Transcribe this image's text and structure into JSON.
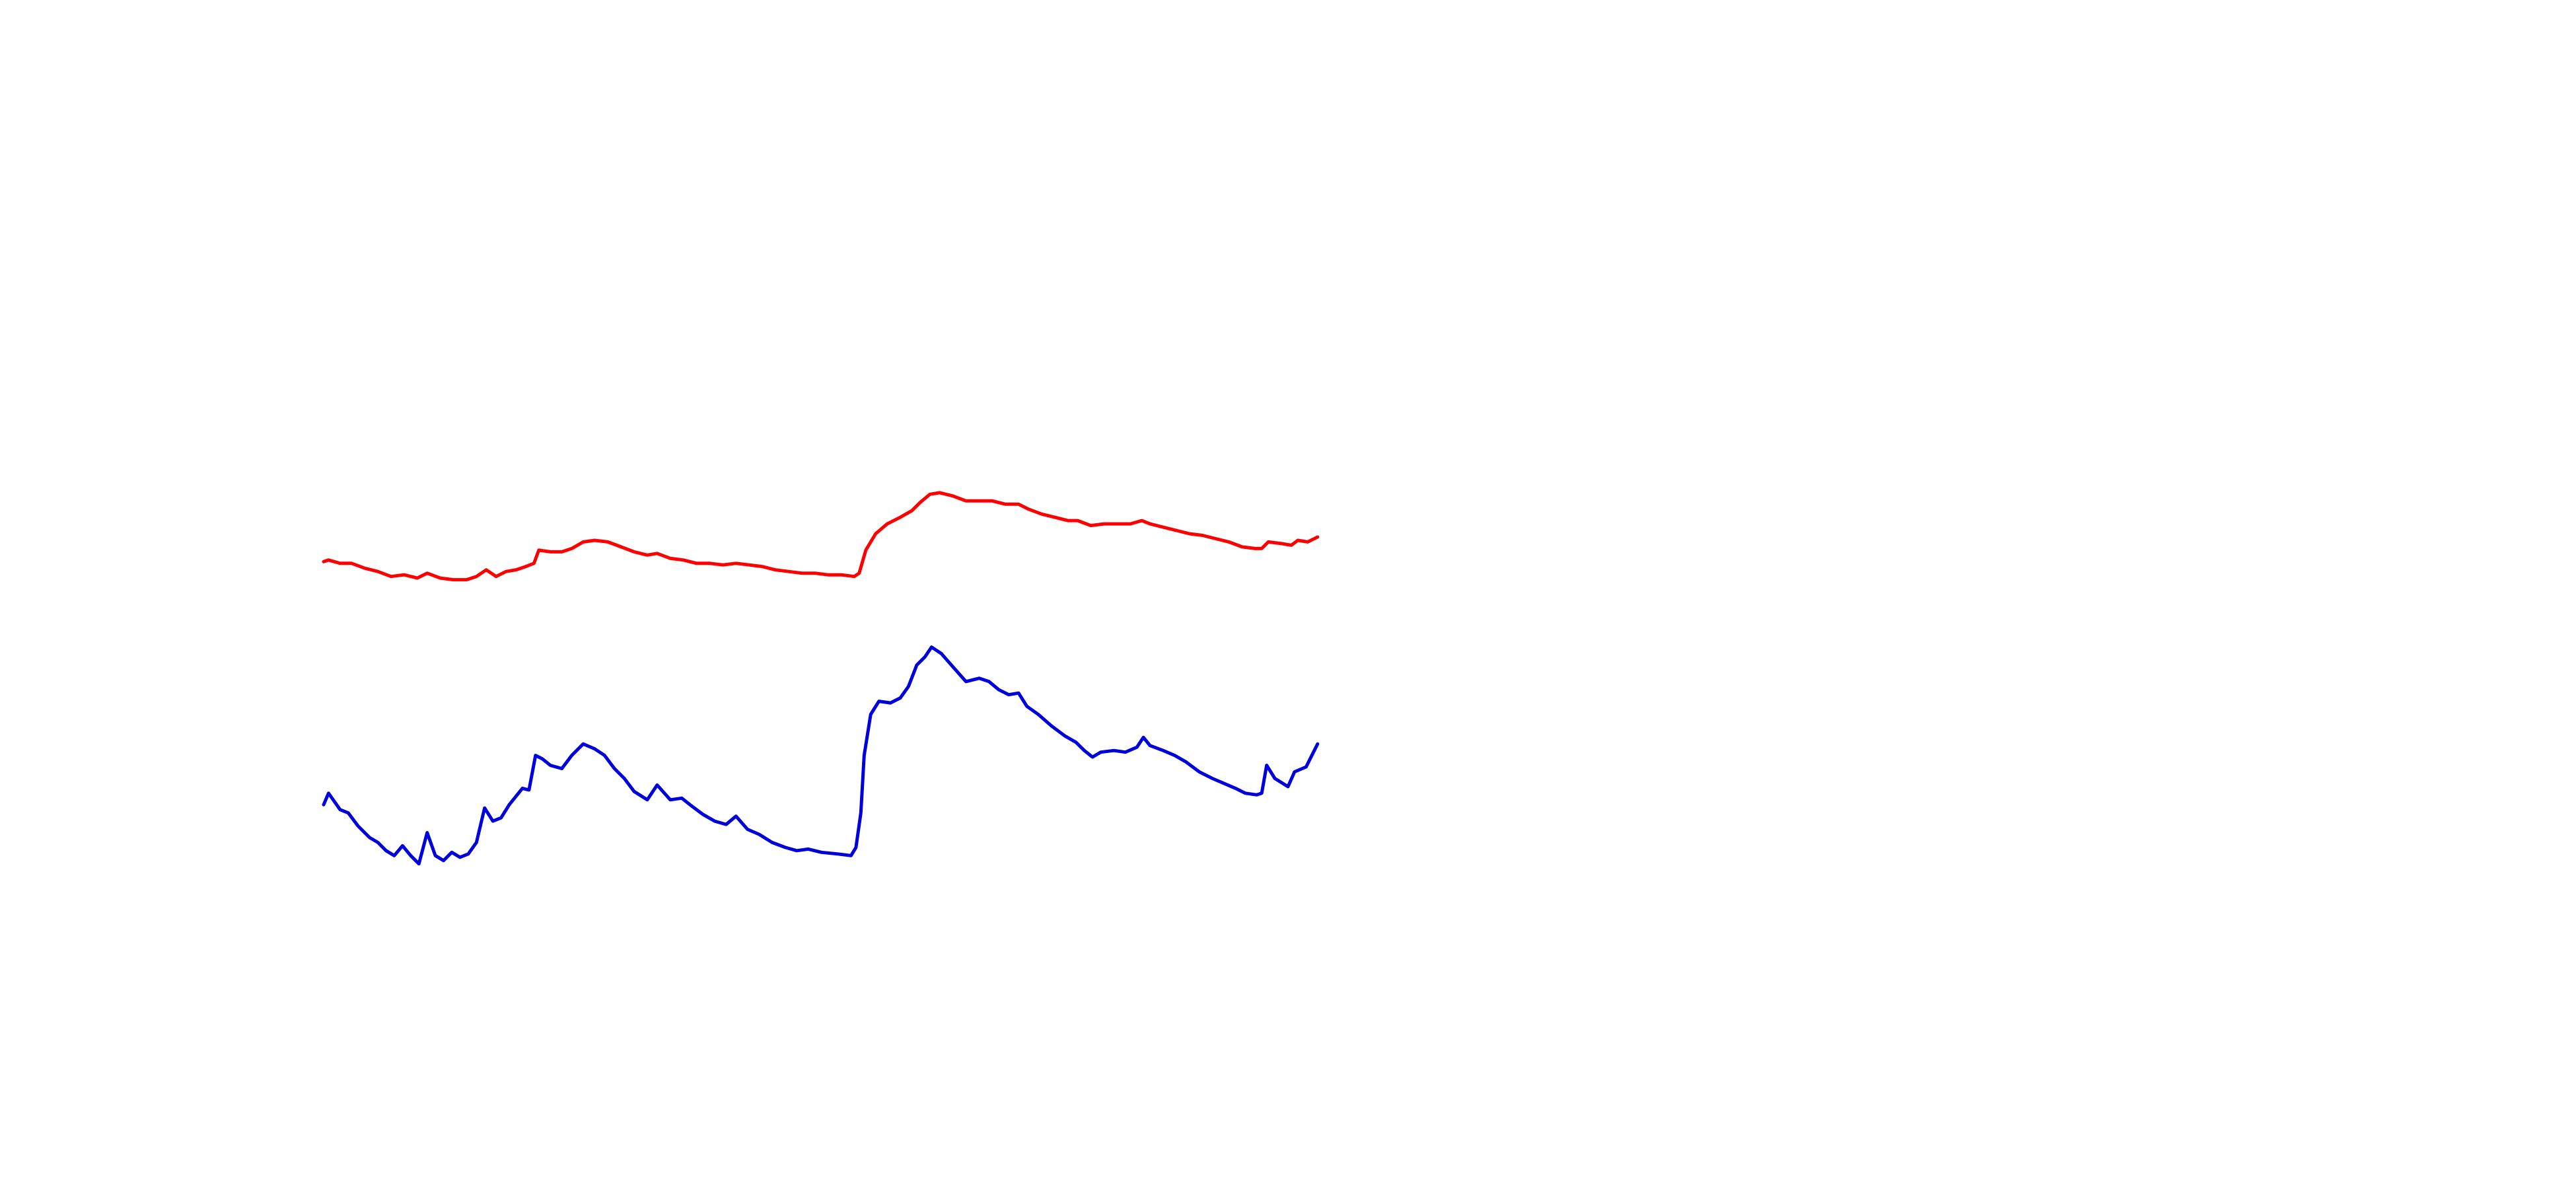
{
  "chart_data": {
    "type": "line",
    "xlim": [
      0,
      1568
    ],
    "ylim": [
      0,
      724
    ],
    "series": [
      {
        "color": "#ff0000",
        "x": [
          197,
          200,
          207,
          214,
          222,
          230,
          238,
          246,
          254,
          260,
          268,
          276,
          284,
          290,
          296,
          302,
          308,
          314,
          320,
          325,
          328,
          335,
          342,
          348,
          355,
          362,
          370,
          378,
          386,
          394,
          400,
          408,
          416,
          424,
          432,
          440,
          448,
          456,
          464,
          472,
          480,
          488,
          496,
          504,
          512,
          520,
          523,
          527,
          533,
          540,
          548,
          555,
          560,
          566,
          572,
          580,
          588,
          596,
          604,
          612,
          620,
          626,
          634,
          642,
          650,
          656,
          664,
          672,
          680,
          688,
          695,
          700,
          708,
          716,
          724,
          732,
          740,
          748,
          756,
          764,
          768,
          772,
          780,
          786,
          790,
          796,
          802
        ],
        "values": [
          382,
          383,
          381,
          381,
          378,
          376,
          373,
          374,
          372,
          375,
          372,
          371,
          371,
          373,
          377,
          373,
          376,
          377,
          379,
          381,
          389,
          388,
          388,
          390,
          394,
          395,
          394,
          391,
          388,
          386,
          387,
          384,
          383,
          381,
          381,
          380,
          381,
          380,
          379,
          377,
          376,
          375,
          375,
          374,
          374,
          373,
          375,
          389,
          399,
          405,
          409,
          413,
          418,
          423,
          424,
          422,
          419,
          419,
          419,
          417,
          417,
          414,
          411,
          409,
          407,
          407,
          404,
          405,
          405,
          405,
          407,
          405,
          403,
          401,
          399,
          398,
          396,
          394,
          391,
          390,
          390,
          394,
          393,
          392,
          395,
          394,
          397
        ]
      },
      {
        "color": "#0000dd",
        "x": [
          197,
          200,
          207,
          212,
          218,
          225,
          230,
          235,
          240,
          245,
          250,
          255,
          260,
          265,
          270,
          275,
          280,
          285,
          290,
          295,
          300,
          305,
          310,
          318,
          322,
          326,
          330,
          335,
          342,
          348,
          355,
          362,
          368,
          374,
          380,
          386,
          394,
          400,
          408,
          415,
          420,
          428,
          435,
          442,
          448,
          455,
          462,
          470,
          478,
          485,
          492,
          500,
          510,
          518,
          521,
          524,
          526,
          530,
          535,
          542,
          548,
          553,
          558,
          563,
          567,
          573,
          580,
          588,
          596,
          602,
          608,
          614,
          620,
          625,
          632,
          640,
          648,
          655,
          660,
          665,
          670,
          678,
          685,
          692,
          696,
          700,
          708,
          715,
          722,
          730,
          738,
          745,
          752,
          758,
          765,
          768,
          771,
          776,
          784,
          788,
          795,
          802
        ],
        "values": [
          234,
          241,
          231,
          229,
          221,
          214,
          211,
          206,
          203,
          209,
          203,
          198,
          217,
          203,
          200,
          205,
          202,
          204,
          211,
          232,
          224,
          226,
          234,
          244,
          243,
          264,
          262,
          258,
          256,
          264,
          271,
          268,
          264,
          256,
          250,
          242,
          237,
          246,
          237,
          238,
          234,
          228,
          224,
          222,
          227,
          219,
          216,
          211,
          208,
          206,
          207,
          205,
          204,
          203,
          208,
          229,
          264,
          289,
          297,
          296,
          299,
          306,
          319,
          324,
          330,
          326,
          318,
          309,
          311,
          309,
          304,
          301,
          302,
          294,
          289,
          282,
          276,
          272,
          267,
          263,
          266,
          267,
          266,
          269,
          275,
          270,
          267,
          264,
          260,
          254,
          250,
          247,
          244,
          241,
          240,
          241,
          258,
          250,
          245,
          254,
          257,
          271
        ]
      }
    ]
  }
}
